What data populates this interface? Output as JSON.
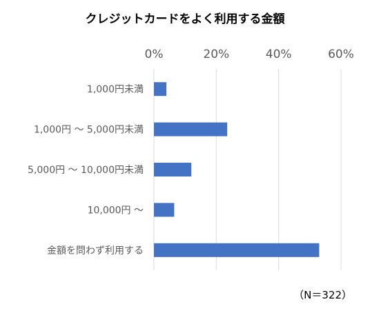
{
  "chart_data": {
    "type": "bar",
    "orientation": "horizontal",
    "title": "クレジットカードをよく利用する金額",
    "categories": [
      "1,000円未満",
      "1,000円 ～ 5,000円未満",
      "5,000円 ～ 10,000円未満",
      "10,000円 ～",
      "金額を問わず利用する"
    ],
    "values": [
      4,
      23.5,
      12,
      6.5,
      53
    ],
    "xlim": [
      0,
      60
    ],
    "x_ticks": [
      0,
      20,
      40,
      60
    ],
    "x_tick_labels": [
      "0%",
      "20%",
      "40%",
      "60%"
    ],
    "x_axis_position": "top",
    "grid": true,
    "legend": "none",
    "bar_color": "#4472C4",
    "annotation": "（N＝322）"
  }
}
